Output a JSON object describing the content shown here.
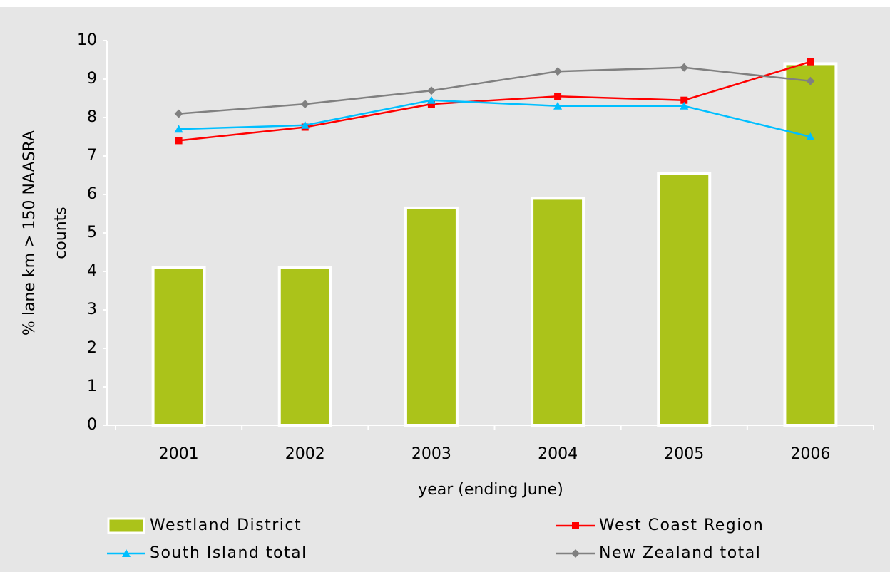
{
  "chart_data": {
    "type": "bar-line",
    "xlabel": "year (ending June)",
    "ylabel": [
      "% lane km > 150 NAASRA",
      "counts"
    ],
    "categories": [
      "2001",
      "2002",
      "2003",
      "2004",
      "2005",
      "2006"
    ],
    "ylim": [
      0,
      10
    ],
    "yticks": [
      0,
      1,
      2,
      3,
      4,
      5,
      6,
      7,
      8,
      9,
      10
    ],
    "series": [
      {
        "name": "Westland District",
        "type": "bar",
        "color": "#abc31a",
        "values": [
          4.1,
          4.1,
          5.65,
          5.9,
          6.55,
          9.4
        ]
      },
      {
        "name": "West Coast Region",
        "type": "line",
        "marker": "square",
        "color": "#ff0000",
        "values": [
          7.4,
          7.75,
          8.35,
          8.55,
          8.45,
          9.45
        ]
      },
      {
        "name": "South Island total",
        "type": "line",
        "marker": "triangle",
        "color": "#00bfff",
        "values": [
          7.7,
          7.8,
          8.45,
          8.3,
          8.3,
          7.5
        ]
      },
      {
        "name": "New Zealand total",
        "type": "line",
        "marker": "diamond",
        "color": "#808080",
        "values": [
          8.1,
          8.35,
          8.7,
          9.2,
          9.3,
          8.95
        ]
      }
    ]
  }
}
